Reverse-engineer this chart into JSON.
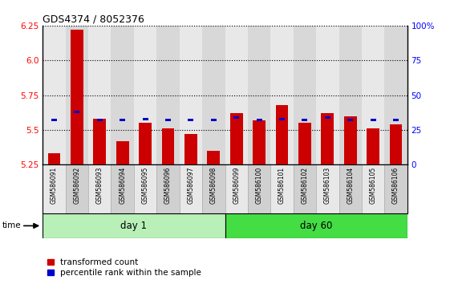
{
  "title": "GDS4374 / 8052376",
  "samples": [
    "GSM586091",
    "GSM586092",
    "GSM586093",
    "GSM586094",
    "GSM586095",
    "GSM586096",
    "GSM586097",
    "GSM586098",
    "GSM586099",
    "GSM586100",
    "GSM586101",
    "GSM586102",
    "GSM586103",
    "GSM586104",
    "GSM586105",
    "GSM586106"
  ],
  "red_values": [
    5.33,
    6.22,
    5.58,
    5.42,
    5.55,
    5.51,
    5.47,
    5.35,
    5.62,
    5.57,
    5.68,
    5.55,
    5.62,
    5.6,
    5.51,
    5.54
  ],
  "blue_values": [
    5.57,
    5.63,
    5.57,
    5.57,
    5.58,
    5.57,
    5.57,
    5.57,
    5.59,
    5.57,
    5.58,
    5.57,
    5.59,
    5.57,
    5.57,
    5.57
  ],
  "ylim_left": [
    5.25,
    6.25
  ],
  "ylim_right": [
    0,
    100
  ],
  "yticks_left": [
    5.25,
    5.5,
    5.75,
    6.0,
    6.25
  ],
  "yticks_right": [
    0,
    25,
    50,
    75,
    100
  ],
  "ytick_labels_right": [
    "0",
    "25",
    "50",
    "75",
    "100%"
  ],
  "day1_samples": 8,
  "day60_samples": 8,
  "day1_label": "day 1",
  "day60_label": "day 60",
  "bar_bottom": 5.25,
  "bar_color": "#cc0000",
  "blue_color": "#0000cc",
  "day1_color": "#b8f0b8",
  "day60_color": "#44dd44",
  "legend_red": "transformed count",
  "legend_blue": "percentile rank within the sample",
  "time_label": "time",
  "bar_width": 0.55
}
